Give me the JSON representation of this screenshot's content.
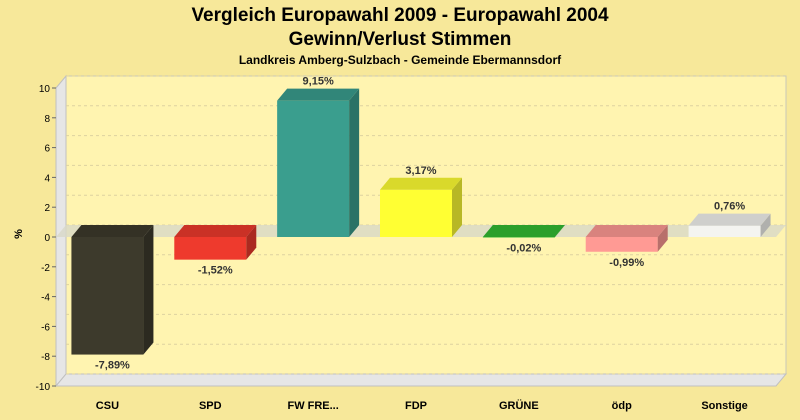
{
  "colors": {
    "background": "#f7e89a",
    "plot": "#fff4b0",
    "wall": "#e6e6e6"
  },
  "chart_data": {
    "type": "bar",
    "title": "Vergleich Europawahl 2009 - Europawahl 2004",
    "title2": "Gewinn/Verlust Stimmen",
    "subtitle": "Landkreis Amberg-Sulzbach - Gemeinde Ebermannsdorf",
    "xlabel": "",
    "ylabel": "%",
    "ylim": [
      -10,
      10
    ],
    "yticks": [
      -10,
      -8,
      -6,
      -4,
      -2,
      0,
      2,
      4,
      6,
      8,
      10
    ],
    "grid": true,
    "categories": [
      "CSU",
      "SPD",
      "FW FRE...",
      "FDP",
      "GRÜNE",
      "ödp",
      "Sonstige"
    ],
    "values": [
      -7.89,
      -1.52,
      9.15,
      3.17,
      -0.02,
      -0.99,
      0.76
    ],
    "labels": [
      "-7,89%",
      "-1,52%",
      "9,15%",
      "3,17%",
      "-0,02%",
      "-0,99%",
      "0,76%"
    ],
    "colors": [
      "#3d3a2c",
      "#ee3a2d",
      "#3a9e8e",
      "#ffff33",
      "#33bb33",
      "#ff9a94",
      "#f4f4f0"
    ]
  }
}
